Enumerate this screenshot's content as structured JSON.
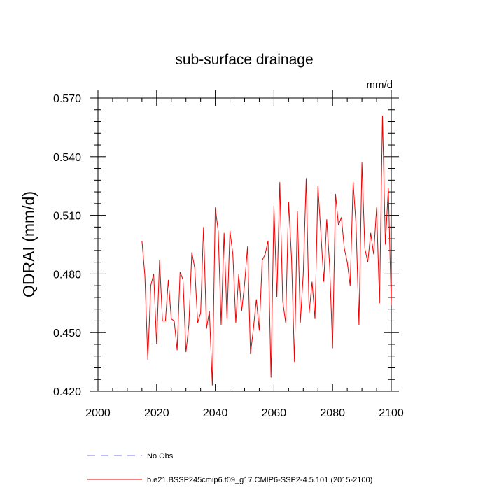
{
  "chart_data": {
    "type": "line",
    "title": "sub-surface drainage",
    "units": "mm/d",
    "ylabel": "QDRAI  (mm/d)",
    "xlabel": "",
    "xlim": [
      2000,
      2100
    ],
    "ylim": [
      0.42,
      0.57
    ],
    "xticks": [
      "2000",
      "2020",
      "2040",
      "2060",
      "2080",
      "2100"
    ],
    "yticks": [
      "0.420",
      "0.450",
      "0.480",
      "0.510",
      "0.540",
      "0.570"
    ],
    "grid": false,
    "legend_position": "bottom",
    "series": [
      {
        "name": "No Obs",
        "style": "dashed",
        "color": "#7777ee",
        "x": [],
        "values": []
      },
      {
        "name": "b.e21.BSSP245cmip6.f09_g17.CMIP6-SSP2-4.5.101 (2015-2100)",
        "style": "solid",
        "color": "#ee0000",
        "x": [
          2015,
          2016,
          2017,
          2018,
          2019,
          2020,
          2021,
          2022,
          2023,
          2024,
          2025,
          2026,
          2027,
          2028,
          2029,
          2030,
          2031,
          2032,
          2033,
          2034,
          2035,
          2036,
          2037,
          2038,
          2039,
          2040,
          2041,
          2042,
          2043,
          2044,
          2045,
          2046,
          2047,
          2048,
          2049,
          2050,
          2051,
          2052,
          2053,
          2054,
          2055,
          2056,
          2057,
          2058,
          2059,
          2060,
          2061,
          2062,
          2063,
          2064,
          2065,
          2066,
          2067,
          2068,
          2069,
          2070,
          2071,
          2072,
          2073,
          2074,
          2075,
          2076,
          2077,
          2078,
          2079,
          2080,
          2081,
          2082,
          2083,
          2084,
          2085,
          2086,
          2087,
          2088,
          2089,
          2090,
          2091,
          2092,
          2093,
          2094,
          2095,
          2096,
          2097,
          2098,
          2099,
          2100
        ],
        "values": [
          0.497,
          0.479,
          0.436,
          0.474,
          0.48,
          0.444,
          0.487,
          0.456,
          0.456,
          0.477,
          0.457,
          0.456,
          0.441,
          0.481,
          0.477,
          0.44,
          0.454,
          0.491,
          0.483,
          0.455,
          0.46,
          0.504,
          0.452,
          0.461,
          0.423,
          0.514,
          0.502,
          0.454,
          0.501,
          0.457,
          0.502,
          0.49,
          0.455,
          0.48,
          0.461,
          0.475,
          0.494,
          0.439,
          0.452,
          0.467,
          0.451,
          0.487,
          0.49,
          0.497,
          0.427,
          0.515,
          0.468,
          0.527,
          0.466,
          0.455,
          0.517,
          0.488,
          0.435,
          0.512,
          0.455,
          0.48,
          0.529,
          0.46,
          0.476,
          0.457,
          0.525,
          0.501,
          0.476,
          0.508,
          0.484,
          0.442,
          0.521,
          0.505,
          0.509,
          0.493,
          0.486,
          0.474,
          0.527,
          0.505,
          0.454,
          0.537,
          0.493,
          0.486,
          0.501,
          0.49,
          0.514,
          0.465,
          0.561,
          0.495,
          0.524,
          0.464
        ]
      }
    ]
  }
}
